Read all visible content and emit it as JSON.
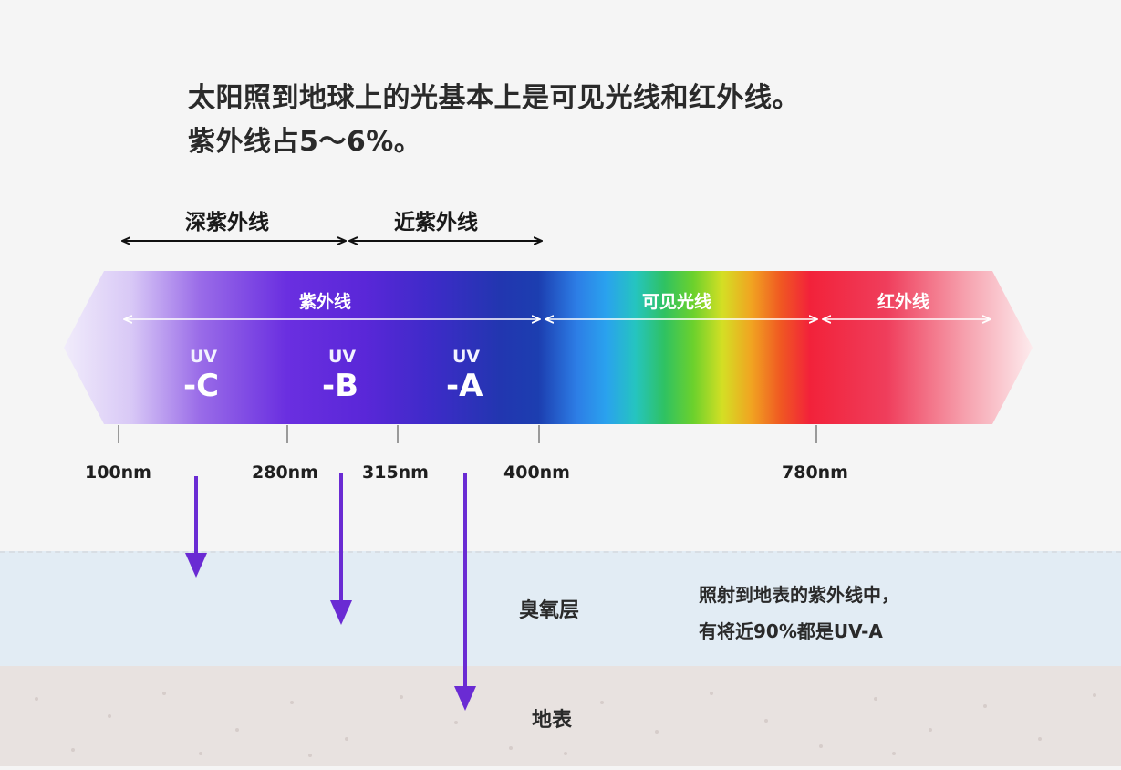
{
  "title": {
    "line1": "太阳照到地球上的光基本上是可见光线和红外线。",
    "line2": "紫外线占5～6%。"
  },
  "ranges": {
    "deep_uv": "深紫外线",
    "near_uv": "近紫外线"
  },
  "bands": {
    "uv": "紫外线",
    "visible": "可见光线",
    "infrared": "红外线"
  },
  "uv_types": [
    {
      "top": "UV",
      "bottom": "-C"
    },
    {
      "top": "UV",
      "bottom": "-B"
    },
    {
      "top": "UV",
      "bottom": "-A"
    }
  ],
  "ticks": [
    "100nm",
    "280nm",
    "315nm",
    "400nm",
    "780nm"
  ],
  "layers": {
    "ozone": "臭氧层",
    "ground": "地表"
  },
  "note": {
    "line1": "照射到地表的紫外线中，",
    "line2": "有将近90%都是UV-A"
  },
  "colors": {
    "arrow": "#6a2bd3",
    "ozone": "#e2ecf4",
    "ground": "#e8e2e0"
  }
}
